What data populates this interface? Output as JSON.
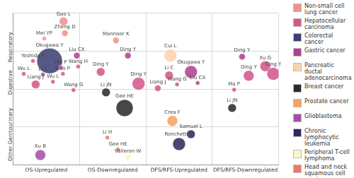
{
  "chart_data": {
    "type": "bubble",
    "xlim": [
      0,
      4
    ],
    "ylim": [
      0,
      4
    ],
    "xticks": [
      {
        "value": 0.5,
        "label": "OS-Upregulated"
      },
      {
        "value": 1.5,
        "label": "OS-Downregulated"
      },
      {
        "value": 2.5,
        "label": "DFS/RFS-Upregulated"
      },
      {
        "value": 3.5,
        "label": "DFS/RFS-Downregulated"
      }
    ],
    "yticks": [
      {
        "value": 0.5,
        "label": "Other"
      },
      {
        "value": 1.5,
        "label": "Genitourinary"
      },
      {
        "value": 2.5,
        "label": "Digestive"
      },
      {
        "value": 3.5,
        "label": "Respiratory"
      }
    ],
    "grid": true,
    "legend": "right",
    "series": [
      {
        "name": "Non-small cell lung cancer",
        "color": "#f0928a",
        "values": [
          {
            "label": "Gao L",
            "x": 0.76,
            "y": 3.78,
            "size": 2
          },
          {
            "label": "Mei YP",
            "x": 0.47,
            "y": 3.33,
            "size": 1
          },
          {
            "label": "Zheng D",
            "x": 0.78,
            "y": 3.47,
            "size": 1.5
          },
          {
            "label": "Mannoor K",
            "x": 1.55,
            "y": 3.28,
            "size": 1.5
          }
        ]
      },
      {
        "name": "Hepatocellular carcinoma",
        "color": "#d3578a",
        "values": [
          {
            "label": "Yoshida K",
            "x": 0.3,
            "y": 2.74,
            "size": 1
          },
          {
            "label": "Ma P",
            "x": 0.72,
            "y": 2.57,
            "size": 1
          },
          {
            "label": "Wu L",
            "x": 0.16,
            "y": 2.4,
            "size": 1
          },
          {
            "label": "Gao P",
            "x": 0.75,
            "y": 2.4,
            "size": 1
          },
          {
            "label": "Wang H",
            "x": 0.98,
            "y": 2.59,
            "size": 1
          },
          {
            "label": "Liang J",
            "x": 0.34,
            "y": 2.12,
            "size": 2
          },
          {
            "label": "Wu L",
            "x": 0.6,
            "y": 2.19,
            "size": 1
          },
          {
            "label": "Wang G",
            "x": 0.91,
            "y": 1.97,
            "size": 1
          },
          {
            "label": "Ding Y",
            "x": 1.32,
            "y": 2.45,
            "size": 2
          },
          {
            "label": "Ding Y",
            "x": 1.89,
            "y": 2.14,
            "size": 3
          },
          {
            "label": "Li C",
            "x": 2.35,
            "y": 2.36,
            "size": 2
          },
          {
            "label": "Wang G",
            "x": 2.47,
            "y": 2.12,
            "size": 1
          },
          {
            "label": "Liang J",
            "x": 2.18,
            "y": 2.02,
            "size": 1.5
          },
          {
            "label": "Ma P",
            "x": 3.33,
            "y": 1.98,
            "size": 1
          },
          {
            "label": "Xu G",
            "x": 3.8,
            "y": 2.6,
            "size": 2.5
          },
          {
            "label": "Ding Y",
            "x": 3.55,
            "y": 2.35,
            "size": 2.5
          },
          {
            "label": "Ding Y",
            "x": 3.92,
            "y": 2.4,
            "size": 3
          }
        ]
      },
      {
        "name": "Colorectal cancer",
        "color": "#3b3f73",
        "values": [
          {
            "label": "Okugawa Y",
            "x": 0.55,
            "y": 2.74,
            "size": 6
          }
        ]
      },
      {
        "name": "Gastric cancer",
        "color": "#b0408f",
        "values": [
          {
            "label": "Liu CX",
            "x": 0.96,
            "y": 2.88,
            "size": 1.5
          },
          {
            "label": "Li C",
            "x": 0.45,
            "y": 2.38,
            "size": 1
          },
          {
            "label": "Ding Y",
            "x": 1.73,
            "y": 2.88,
            "size": 1.5
          },
          {
            "label": "Okugawa Y",
            "x": 2.68,
            "y": 2.45,
            "size": 3
          },
          {
            "label": "Liu CX",
            "x": 2.78,
            "y": 2.16,
            "size": 1
          },
          {
            "label": "Ding Y",
            "x": 3.45,
            "y": 2.85,
            "size": 1.5
          }
        ]
      },
      {
        "name": "Pancreatic ductal adenocarcinoma",
        "color": "#fcd3a8",
        "values": [
          {
            "label": "Cui L",
            "x": 2.37,
            "y": 2.88,
            "size": 3
          }
        ]
      },
      {
        "name": "Breast cancer",
        "color": "#2b2b2b",
        "values": [
          {
            "label": "Li JN",
            "x": 1.4,
            "y": 1.91,
            "size": 2
          },
          {
            "label": "Gee HE",
            "x": 1.68,
            "y": 1.5,
            "size": 4
          },
          {
            "label": "Li JN",
            "x": 3.3,
            "y": 1.5,
            "size": 2
          }
        ]
      },
      {
        "name": "Prostate cancer",
        "color": "#f4a461",
        "values": [
          {
            "label": "Crea F",
            "x": 2.4,
            "y": 1.16,
            "size": 2.5
          }
        ]
      },
      {
        "name": "Glioblastoma",
        "color": "#a050a8",
        "values": [
          {
            "label": "Xu B",
            "x": 0.41,
            "y": 0.26,
            "size": 2.5
          }
        ]
      },
      {
        "name": "Chronic lymphocytic leukemia",
        "color": "#2f2a5e",
        "values": [
          {
            "label": "Ronchetti D",
            "x": 2.5,
            "y": 0.55,
            "size": 3
          },
          {
            "label": "Samuel L",
            "x": 2.68,
            "y": 0.81,
            "size": 2
          }
        ]
      },
      {
        "name": "Peripheral T-cell lymphoma",
        "color": "#fff6c8",
        "values": [
          {
            "label": "Valleron W",
            "x": 1.73,
            "y": 0.2,
            "size": 1.5
          }
        ]
      },
      {
        "name": "Head and neck squamous cell carcinoma",
        "color": "#e87a6a",
        "values": [
          {
            "label": "Li H",
            "x": 1.42,
            "y": 0.72,
            "size": 1
          },
          {
            "label": "Gee HE",
            "x": 1.58,
            "y": 0.41,
            "size": 1
          }
        ]
      }
    ]
  }
}
